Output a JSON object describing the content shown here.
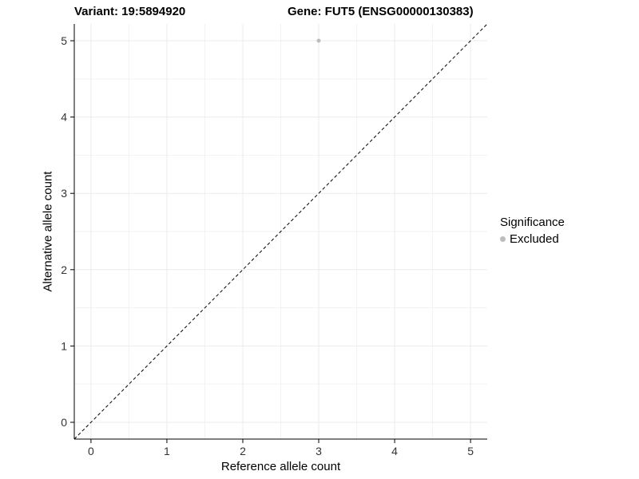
{
  "header": {
    "variant_title": "Variant: 19:5894920",
    "gene_title": "Gene: FUT5 (ENSG00000130383)"
  },
  "chart_data": {
    "type": "scatter",
    "title_left": "Variant: 19:5894920",
    "title_right": "Gene: FUT5 (ENSG00000130383)",
    "xlabel": "Reference allele count",
    "ylabel": "Alternative allele count",
    "xlim": [
      -0.22,
      5.22
    ],
    "ylim": [
      -0.22,
      5.22
    ],
    "xticks": [
      0,
      1,
      2,
      3,
      4,
      5
    ],
    "yticks": [
      0,
      1,
      2,
      3,
      4,
      5
    ],
    "grid": true,
    "points": [
      {
        "x": 3,
        "y": 5,
        "series": "Excluded"
      }
    ],
    "reference_line": {
      "style": "dashed",
      "from": [
        -0.22,
        -0.22
      ],
      "to": [
        5.22,
        5.22
      ],
      "color": "#000000"
    },
    "legend": {
      "title": "Significance",
      "position": "right",
      "items": [
        {
          "label": "Excluded",
          "color": "#bdbdbd"
        }
      ]
    },
    "colors": {
      "point": "#bdbdbd",
      "grid_major": "#ebebeb",
      "grid_minor": "#f2f2f2",
      "axis": "#000000",
      "tick_label": "#333333"
    }
  }
}
